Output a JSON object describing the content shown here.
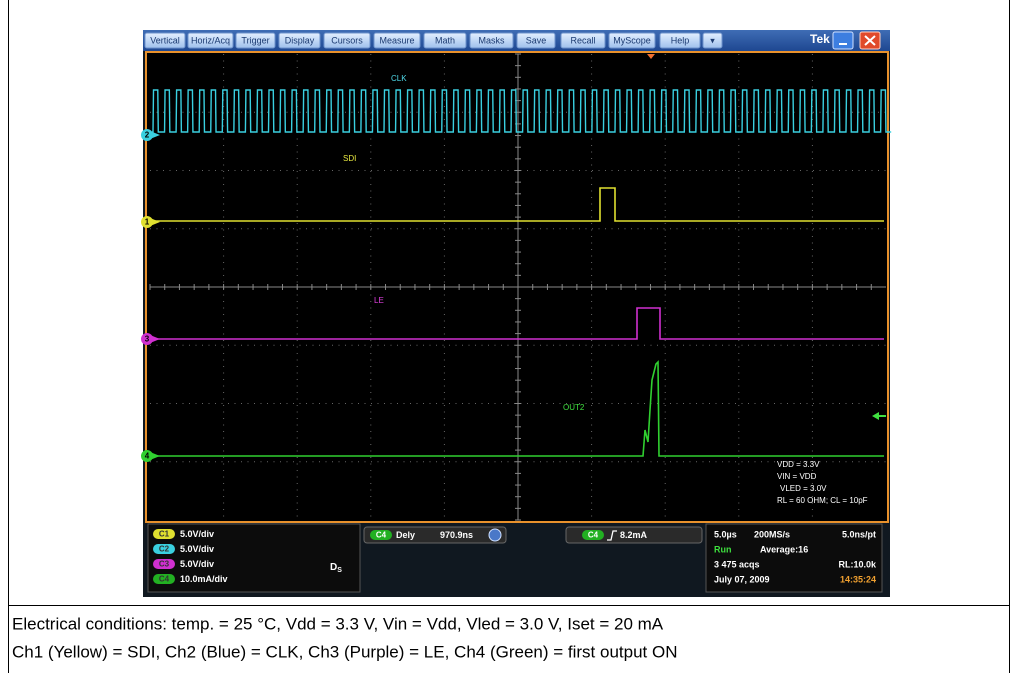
{
  "menu": [
    "Vertical",
    "Horiz/Acq",
    "Trigger",
    "Display",
    "Cursors",
    "Measure",
    "Math",
    "Masks",
    "Save",
    "Recall",
    "MyScope",
    "Help",
    "▾"
  ],
  "brand": "Tek",
  "traces": [
    "CLK",
    "SDI",
    "LE",
    "OUT2"
  ],
  "markers": [
    "2",
    "1",
    "3",
    "4"
  ],
  "notes": [
    "VDD = 3.3V",
    "VIN = VDD",
    "VLED = 3.0V",
    "RL = 60 OHM; CL = 10pF"
  ],
  "status": {
    "channels": [
      {
        "badge": "C1",
        "scale": "5.0V/div"
      },
      {
        "badge": "C2",
        "scale": "5.0V/div"
      },
      {
        "badge": "C3",
        "scale": "5.0V/div"
      },
      {
        "badge": "C4",
        "scale": "10.0mA/div"
      }
    ],
    "ds": {
      "main": "D",
      "sub": "S"
    },
    "delay": {
      "badge": "C4",
      "label": "Dely",
      "value": "970.9ns"
    },
    "trigger": {
      "badge": "C4",
      "level": "8.2mA"
    },
    "acq": [
      [
        "5.0µs",
        "200MS/s",
        "5.0ns/pt"
      ],
      [
        "Run",
        "Average:16"
      ],
      [
        "3 475 acqs",
        "RL:10.0k"
      ],
      [
        "July 07, 2009",
        "14:35:24"
      ]
    ]
  },
  "caption": [
    "Electrical conditions: temp. = 25 °C, Vdd = 3.3 V, Vin = Vdd, Vled = 3.0 V, Iset = 20 mA",
    "Ch1 (Yellow) = SDI, Ch2 (Blue) = CLK, Ch3 (Purple) = LE, Ch4 (Green) = first output ON"
  ]
}
